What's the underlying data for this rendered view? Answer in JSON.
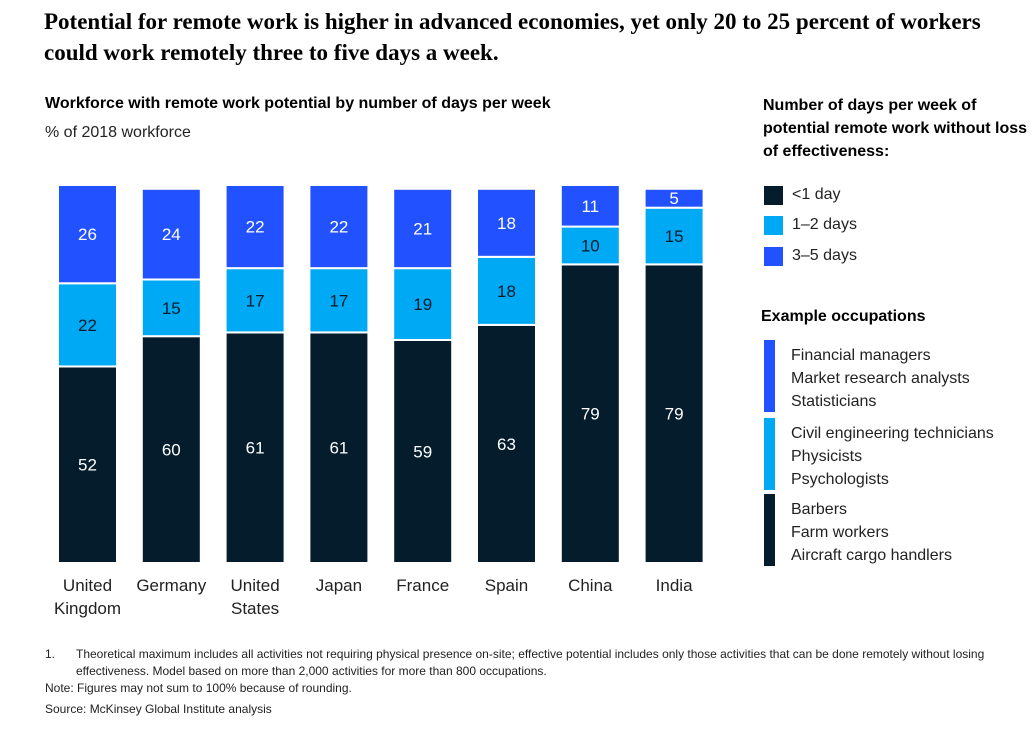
{
  "headline": "Potential for remote work is higher in advanced economies, yet only 20 to 25 percent of workers could work remotely three to five days a week.",
  "legend": {
    "title": "Number of days per week of potential remote work without loss of effectiveness:",
    "items": [
      {
        "label": "<1 day",
        "color": "#051c2c"
      },
      {
        "label": "1–2 days",
        "color": "#00a9f4"
      },
      {
        "label": "3–5 days",
        "color": "#2251ff"
      }
    ]
  },
  "occupations": {
    "title": "Example occupations",
    "groups": [
      {
        "color": "#2251ff",
        "items": [
          "Financial managers",
          "Market research analysts",
          "Statisticians"
        ]
      },
      {
        "color": "#00a9f4",
        "items": [
          "Civil engineering technicians",
          "Physicists",
          "Psychologists"
        ]
      },
      {
        "color": "#051c2c",
        "items": [
          "Barbers",
          "Farm workers",
          "Aircraft cargo handlers"
        ]
      }
    ]
  },
  "chart_data": {
    "type": "bar",
    "stacked": true,
    "title": "Workforce with remote work potential by number of days per week",
    "subtitle": "% of 2018 workforce",
    "categories": [
      [
        "United",
        "Kingdom"
      ],
      [
        "Germany"
      ],
      [
        "United",
        "States"
      ],
      [
        "Japan"
      ],
      [
        "France"
      ],
      [
        "Spain"
      ],
      [
        "China"
      ],
      [
        "India"
      ]
    ],
    "series": [
      {
        "name": "<1 day",
        "color": "#051c2c",
        "label_color": "#ffffff",
        "values": [
          52,
          60,
          61,
          61,
          59,
          63,
          79,
          79
        ]
      },
      {
        "name": "1–2 days",
        "color": "#00a9f4",
        "label_color": "#051c2c",
        "values": [
          22,
          15,
          17,
          17,
          19,
          18,
          10,
          15
        ]
      },
      {
        "name": "3–5 days",
        "color": "#2251ff",
        "label_color": "#ffffff",
        "values": [
          26,
          24,
          22,
          22,
          21,
          18,
          11,
          5
        ]
      }
    ],
    "ylim": [
      0,
      100
    ],
    "grid": false,
    "legend_position": "right"
  },
  "footnotes": {
    "note1_number": "1.",
    "note1_text": "Theoretical maximum includes all activities not requiring physical presence on-site; effective potential includes only those activities that can be done remotely without losing effectiveness. Model based on more than 2,000 activities for more than 800 occupations.",
    "note": "Note: Figures may not sum to 100% because of rounding.",
    "source": "Source: McKinsey Global Institute analysis"
  }
}
